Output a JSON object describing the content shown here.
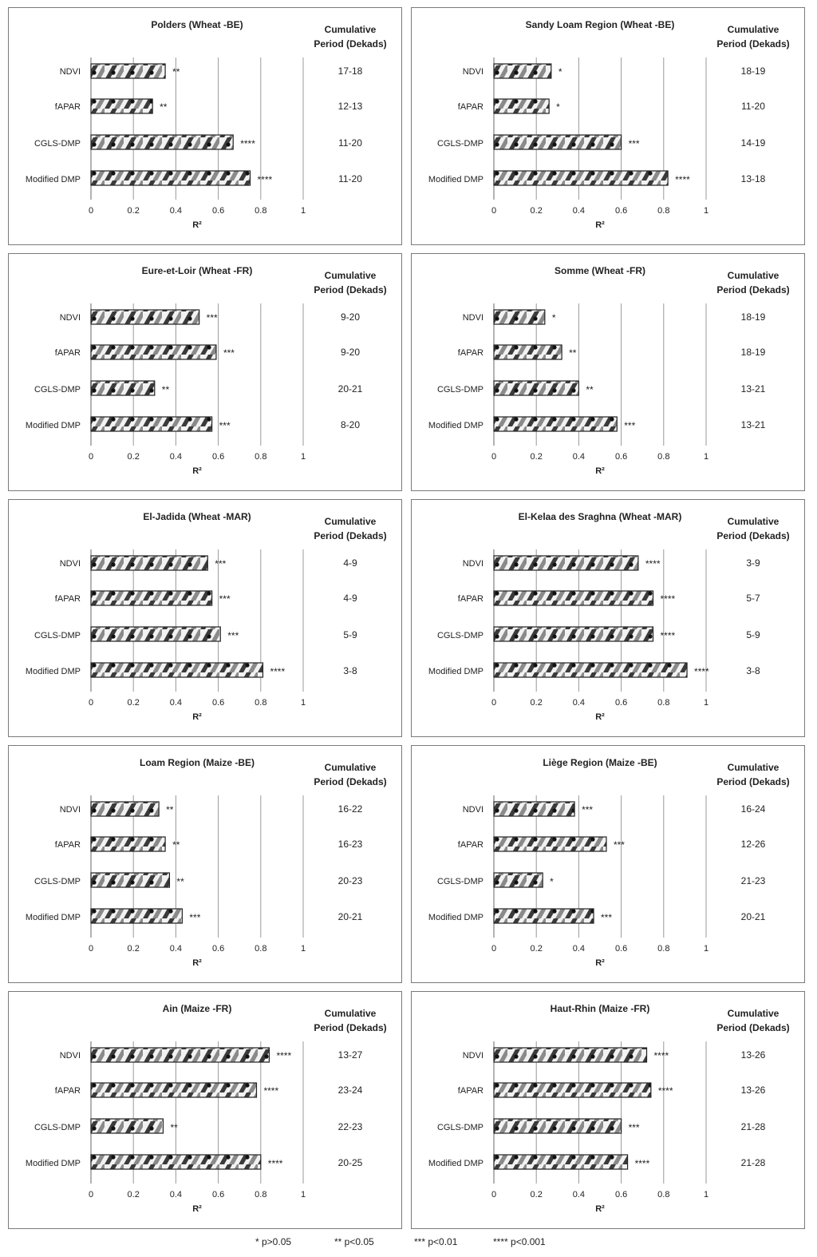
{
  "panel_layout": {
    "columns": 2,
    "rows": 5
  },
  "legend": [
    "* p>0.05",
    "** p<0.05",
    "*** p<0.01",
    "**** p<0.001"
  ],
  "chart_data": [
    {
      "type": "bar",
      "title": "Polders (Wheat -BE)",
      "xlabel": "R²",
      "xlim": [
        0,
        1
      ],
      "xticks": [
        "0",
        "0.2",
        "0.4",
        "0.6",
        "0.8",
        "1"
      ],
      "grid": true,
      "categories": [
        "NDVI",
        "fAPAR",
        "CGLS-DMP",
        "Modified DMP"
      ],
      "values": [
        0.35,
        0.29,
        0.67,
        0.75
      ],
      "significance": [
        "**",
        "**",
        "****",
        "****"
      ],
      "period_header": [
        "Cumulative",
        "Period (Dekads)"
      ],
      "periods": [
        "17-18",
        "12-13",
        "11-20",
        "11-20"
      ]
    },
    {
      "type": "bar",
      "title": "Sandy Loam Region (Wheat -BE)",
      "xlabel": "R²",
      "xlim": [
        0,
        1
      ],
      "xticks": [
        "0",
        "0.2",
        "0.4",
        "0.6",
        "0.8",
        "1"
      ],
      "grid": true,
      "categories": [
        "NDVI",
        "fAPAR",
        "CGLS-DMP",
        "Modified DMP"
      ],
      "values": [
        0.27,
        0.26,
        0.6,
        0.82
      ],
      "significance": [
        "*",
        "*",
        "***",
        "****"
      ],
      "period_header": [
        "Cumulative",
        "Period (Dekads)"
      ],
      "periods": [
        "18-19",
        "11-20",
        "14-19",
        "13-18"
      ]
    },
    {
      "type": "bar",
      "title": "Eure-et-Loir (Wheat -FR)",
      "xlabel": "R²",
      "xlim": [
        0,
        1
      ],
      "xticks": [
        "0",
        "0.2",
        "0.4",
        "0.6",
        "0.8",
        "1"
      ],
      "grid": true,
      "categories": [
        "NDVI",
        "fAPAR",
        "CGLS-DMP",
        "Modified DMP"
      ],
      "values": [
        0.51,
        0.59,
        0.3,
        0.57
      ],
      "significance": [
        "***",
        "***",
        "**",
        "***"
      ],
      "period_header": [
        "Cumulative",
        "Period (Dekads)"
      ],
      "periods": [
        "9-20",
        "9-20",
        "20-21",
        "8-20"
      ]
    },
    {
      "type": "bar",
      "title": "Somme (Wheat -FR)",
      "xlabel": "R²",
      "xlim": [
        0,
        1
      ],
      "xticks": [
        "0",
        "0.2",
        "0.4",
        "0.6",
        "0.8",
        "1"
      ],
      "grid": true,
      "categories": [
        "NDVI",
        "fAPAR",
        "CGLS-DMP",
        "Modified DMP"
      ],
      "values": [
        0.24,
        0.32,
        0.4,
        0.58
      ],
      "significance": [
        "*",
        "**",
        "**",
        "***"
      ],
      "period_header": [
        "Cumulative",
        "Period (Dekads)"
      ],
      "periods": [
        "18-19",
        "18-19",
        "13-21",
        "13-21"
      ]
    },
    {
      "type": "bar",
      "title": "El-Jadida (Wheat -MAR)",
      "xlabel": "R²",
      "xlim": [
        0,
        1
      ],
      "xticks": [
        "0",
        "0.2",
        "0.4",
        "0.6",
        "0.8",
        "1"
      ],
      "grid": true,
      "categories": [
        "NDVI",
        "fAPAR",
        "CGLS-DMP",
        "Modified DMP"
      ],
      "values": [
        0.55,
        0.57,
        0.61,
        0.81
      ],
      "significance": [
        "***",
        "***",
        "***",
        "****"
      ],
      "period_header": [
        "Cumulative",
        "Period (Dekads)"
      ],
      "periods": [
        "4-9",
        "4-9",
        "5-9",
        "3-8"
      ]
    },
    {
      "type": "bar",
      "title": "El-Kelaa des Sraghna (Wheat -MAR)",
      "xlabel": "R²",
      "xlim": [
        0,
        1
      ],
      "xticks": [
        "0",
        "0.2",
        "0.4",
        "0.6",
        "0.8",
        "1"
      ],
      "grid": true,
      "categories": [
        "NDVI",
        "fAPAR",
        "CGLS-DMP",
        "Modified DMP"
      ],
      "values": [
        0.68,
        0.75,
        0.75,
        0.91
      ],
      "significance": [
        "****",
        "****",
        "****",
        "****"
      ],
      "period_header": [
        "Cumulative",
        "Period (Dekads)"
      ],
      "periods": [
        "3-9",
        "5-7",
        "5-9",
        "3-8"
      ]
    },
    {
      "type": "bar",
      "title": "Loam Region (Maize -BE)",
      "xlabel": "R²",
      "xlim": [
        0,
        1
      ],
      "xticks": [
        "0",
        "0.2",
        "0.4",
        "0.6",
        "0.8",
        "1"
      ],
      "grid": true,
      "categories": [
        "NDVI",
        "fAPAR",
        "CGLS-DMP",
        "Modified DMP"
      ],
      "values": [
        0.32,
        0.35,
        0.37,
        0.43
      ],
      "significance": [
        "**",
        "**",
        "**",
        "***"
      ],
      "period_header": [
        "Cumulative",
        "Period (Dekads)"
      ],
      "periods": [
        "16-22",
        "16-23",
        "20-23",
        "20-21"
      ]
    },
    {
      "type": "bar",
      "title": "Liège Region (Maize -BE)",
      "xlabel": "R²",
      "xlim": [
        0,
        1
      ],
      "xticks": [
        "0",
        "0.2",
        "0.4",
        "0.6",
        "0.8",
        "1"
      ],
      "grid": true,
      "categories": [
        "NDVI",
        "fAPAR",
        "CGLS-DMP",
        "Modified DMP"
      ],
      "values": [
        0.38,
        0.53,
        0.23,
        0.47
      ],
      "significance": [
        "***",
        "***",
        "*",
        "***"
      ],
      "period_header": [
        "Cumulative",
        "Period (Dekads)"
      ],
      "periods": [
        "16-24",
        "12-26",
        "21-23",
        "20-21"
      ]
    },
    {
      "type": "bar",
      "title": "Ain (Maize -FR)",
      "xlabel": "R²",
      "xlim": [
        0,
        1
      ],
      "xticks": [
        "0",
        "0.2",
        "0.4",
        "0.6",
        "0.8",
        "1"
      ],
      "grid": true,
      "categories": [
        "NDVI",
        "fAPAR",
        "CGLS-DMP",
        "Modified DMP"
      ],
      "values": [
        0.84,
        0.78,
        0.34,
        0.8
      ],
      "significance": [
        "****",
        "****",
        "**",
        "****"
      ],
      "period_header": [
        "Cumulative",
        "Period (Dekads)"
      ],
      "periods": [
        "13-27",
        "23-24",
        "22-23",
        "20-25"
      ]
    },
    {
      "type": "bar",
      "title": "Haut-Rhin (Maize -FR)",
      "xlabel": "R²",
      "xlim": [
        0,
        1
      ],
      "xticks": [
        "0",
        "0.2",
        "0.4",
        "0.6",
        "0.8",
        "1"
      ],
      "grid": true,
      "categories": [
        "NDVI",
        "fAPAR",
        "CGLS-DMP",
        "Modified DMP"
      ],
      "values": [
        0.72,
        0.74,
        0.6,
        0.63
      ],
      "significance": [
        "****",
        "****",
        "***",
        "****"
      ],
      "period_header": [
        "Cumulative",
        "Period (Dekads)"
      ],
      "periods": [
        "13-26",
        "13-26",
        "21-28",
        "21-28"
      ]
    }
  ]
}
